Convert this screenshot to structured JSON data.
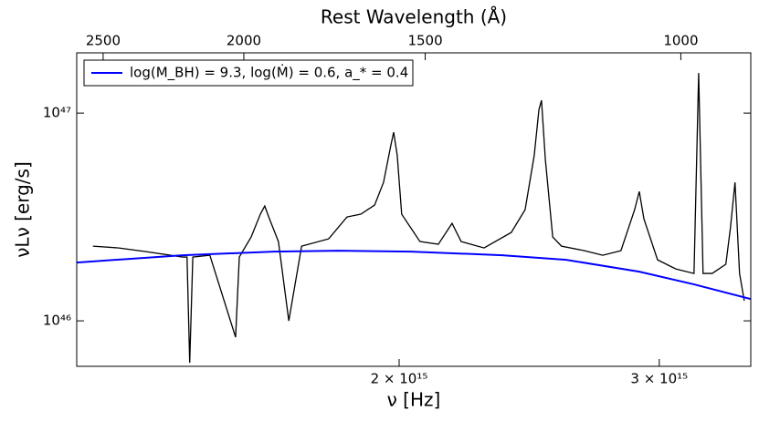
{
  "chart_data": {
    "type": "line",
    "xlabel": "ν [Hz]",
    "ylabel": "νLν [erg/s]",
    "top_axis_label": "Rest Wavelength (Å)",
    "xscale": "log",
    "yscale": "log",
    "grid": false,
    "legend_loc": "upper left",
    "xlim": [
      1210000000000000.0,
      3460000000000000.0
    ],
    "xticks": [
      {
        "value": 2000000000000000.0,
        "label": "2 × 10¹⁵"
      },
      {
        "value": 3000000000000000.0,
        "label": "3 × 10¹⁵"
      }
    ],
    "ylim": [
      6.04e+45,
      1.95e+47
    ],
    "yticks": [
      {
        "value": 1e+46,
        "label": "10⁴⁶"
      },
      {
        "value": 1e+47,
        "label": "10⁴⁷"
      }
    ],
    "top_xlim": [
      2607,
      895
    ],
    "top_xticks": [
      2500,
      2000,
      1500,
      1000
    ],
    "series": [
      {
        "color": "#000000",
        "x": [
          1241000000000000.0,
          1292000000000000.0,
          1348000000000000.0,
          1427000000000000.0,
          1437000000000000.0,
          1443000000000000.0,
          1450000000000000.0,
          1489000000000000.0,
          1550000000000000.0,
          1559000000000000.0,
          1588000000000000.0,
          1611000000000000.0,
          1622000000000000.0,
          1634000000000000.0,
          1657000000000000.0,
          1684000000000000.0,
          1718000000000000.0,
          1792000000000000.0,
          1844000000000000.0,
          1884000000000000.0,
          1925000000000000.0,
          1952000000000000.0,
          1974000000000000.0,
          1983000000000000.0,
          1994000000000000.0,
          2008000000000000.0,
          2066000000000000.0,
          2126000000000000.0,
          2172000000000000.0,
          2203000000000000.0,
          2283000000000000.0,
          2382000000000000.0,
          2434000000000000.0,
          2469000000000000.0,
          2487000000000000.0,
          2497000000000000.0,
          2512000000000000.0,
          2541000000000000.0,
          2576000000000000.0,
          2670000000000000.0,
          2747000000000000.0,
          2826000000000000.0,
          2887000000000000.0,
          2908000000000000.0,
          2929000000000000.0,
          2992000000000000.0,
          3078000000000000.0,
          3167000000000000.0,
          3190000000000000.0,
          3212000000000000.0,
          3258000000000000.0,
          3328000000000000.0,
          3352000000000000.0,
          3376000000000000.0,
          3400000000000000.0,
          3425000000000000.0
        ],
        "values": [
          2.289e+46,
          2.243e+46,
          2.154e+46,
          2.028e+46,
          2.028e+46,
          6.284e+45,
          2.028e+46,
          2.069e+46,
          8.341e+45,
          2.028e+46,
          2.533e+46,
          3.261e+46,
          3.57e+46,
          3.099e+46,
          2.408e+46,
          1e+46,
          2.289e+46,
          2.482e+46,
          3.162e+46,
          3.261e+46,
          3.606e+46,
          4.642e+46,
          6.952e+46,
          8.09e+46,
          6.284e+46,
          3.261e+46,
          2.408e+46,
          2.336e+46,
          2.946e+46,
          2.408e+46,
          2.243e+46,
          2.663e+46,
          3.428e+46,
          6.284e+46,
          1.041e+47,
          1.152e+47,
          5.974e+46,
          2.533e+46,
          2.289e+46,
          2.176e+46,
          2.069e+46,
          2.176e+46,
          3.428e+46,
          4.195e+46,
          3.099e+46,
          1.967e+46,
          1.778e+46,
          1.691e+46,
          1.56e+47,
          1.691e+46,
          1.691e+46,
          1.871e+46,
          2.802e+46,
          4.642e+46,
          1.691e+46,
          1.249e+46
        ]
      },
      {
        "name": "log(M_BH) = 9.3, log(Ṁ) = 0.6, a_* = 0.4",
        "color": "#0000ff",
        "x": [
          1210000000000000.0,
          1427000000000000.0,
          1645000000000000.0,
          1818000000000000.0,
          2037000000000000.0,
          2349000000000000.0,
          2595000000000000.0,
          2908000000000000.0,
          3167000000000000.0,
          3460000000000000.0
        ],
        "values": [
          1.909e+46,
          2.069e+46,
          2.154e+46,
          2.176e+46,
          2.154e+46,
          2.069e+46,
          1.967e+46,
          1.725e+46,
          1.498e+46,
          1.274e+46
        ]
      }
    ]
  }
}
